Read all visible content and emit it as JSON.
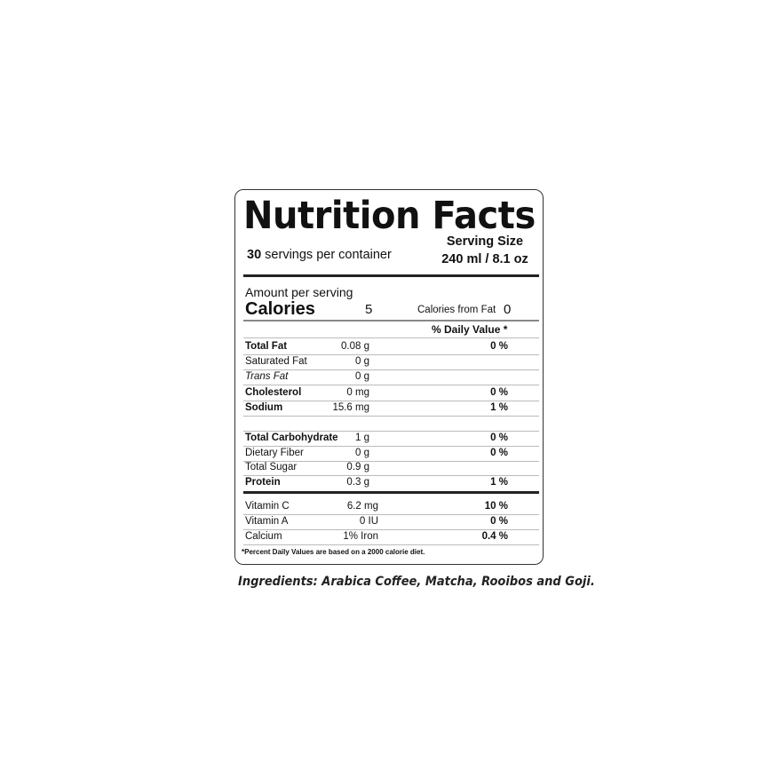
{
  "title": "Nutrition Facts",
  "servings_count": "30",
  "servings_text": "servings per container",
  "serving_size_label": "Serving Size",
  "serving_size_value": "240 ml / 8.1 oz",
  "amount_per_serving": "Amount per serving",
  "calories_label": "Calories",
  "calories_value": "5",
  "calories_from_fat_label": "Calories from Fat",
  "calories_from_fat_value": "0",
  "daily_value_header": "% Daily Value *",
  "rows": [
    {
      "name": "Total Fat",
      "amount": "0.08 g",
      "dv": "0 %"
    },
    {
      "name": "Saturated Fat",
      "amount": "0 g",
      "dv": ""
    },
    {
      "name": "Trans Fat",
      "amount": "0 g",
      "dv": ""
    },
    {
      "name": "Cholesterol",
      "amount": "0 mg",
      "dv": "0 %"
    },
    {
      "name": "Sodium",
      "amount": "15.6 mg",
      "dv": "1 %"
    },
    {
      "name": "Total Carbohydrate",
      "amount": "1 g",
      "dv": "0 %"
    },
    {
      "name": "Dietary Fiber",
      "amount": "0 g",
      "dv": "0 %"
    },
    {
      "name": "Total Sugar",
      "amount": "0.9 g",
      "dv": ""
    },
    {
      "name": "Protein",
      "amount": "0.3 g",
      "dv": "1 %"
    },
    {
      "name": "Vitamin C",
      "amount": "6.2 mg",
      "dv": "10 %"
    },
    {
      "name": "Vitamin A",
      "amount": "0 IU",
      "dv": "0 %"
    },
    {
      "name": "Calcium",
      "amount": "1% Iron",
      "dv": "0.4 %"
    }
  ],
  "footnote": "*Percent Daily Values are based on a 2000 calorie diet.",
  "ingredients": "Ingredients: Arabica Coffee, Matcha, Rooibos and Goji."
}
